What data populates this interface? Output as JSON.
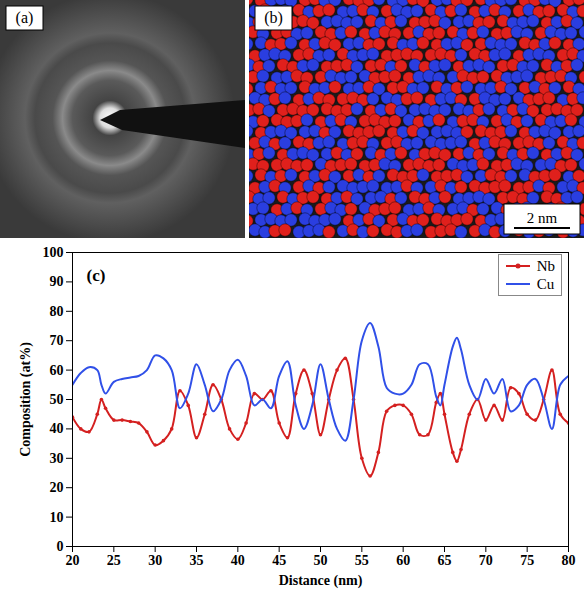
{
  "image_panels": [
    {
      "label": "(a)"
    },
    {
      "label": "(b)",
      "scale_bar": "2 nm"
    }
  ],
  "chart_data": {
    "type": "line",
    "annotations": [
      "(c)"
    ],
    "x_label": "Distance (nm)",
    "y_label": "Composition (at%)",
    "x": [
      20,
      21,
      22,
      23,
      23.5,
      24,
      25,
      26,
      27,
      28,
      29,
      30,
      31,
      32,
      33,
      34,
      35,
      36,
      37,
      38,
      39,
      40,
      41,
      42,
      43,
      44,
      45,
      46,
      47,
      48,
      49,
      50,
      51,
      52,
      53,
      54,
      55,
      56,
      57,
      58,
      59,
      60,
      61,
      62,
      63,
      64,
      64.5,
      65,
      66,
      66.5,
      67,
      68,
      69,
      70,
      71,
      72,
      73,
      74,
      75,
      76,
      77,
      78,
      79,
      80
    ],
    "series": [
      {
        "name": "Nb",
        "color": "#d42020",
        "marker": "circle",
        "values": [
          44,
          40,
          39,
          45,
          50,
          47,
          43,
          43,
          42.5,
          42,
          39,
          34.5,
          36,
          40,
          53,
          48,
          37,
          45,
          55,
          50,
          40,
          36.5,
          42,
          52,
          50,
          53,
          42,
          37,
          52,
          60,
          52,
          38,
          50,
          60,
          64,
          50,
          30,
          24,
          32,
          46,
          48,
          48,
          45,
          38,
          38,
          49,
          52,
          45,
          32,
          29,
          33,
          45,
          50,
          43,
          48,
          43,
          54,
          52,
          45,
          43,
          50,
          60,
          45,
          42
        ]
      },
      {
        "name": "Cu",
        "color": "#3050e8",
        "values": [
          55,
          59,
          61,
          60,
          55,
          52,
          56,
          57,
          57.5,
          58,
          60,
          65,
          64,
          60,
          47,
          52,
          62,
          55,
          46,
          50,
          60,
          63.5,
          58,
          48,
          50,
          47,
          58,
          63,
          48,
          40,
          48,
          62,
          50,
          40,
          36,
          50,
          70,
          76,
          68,
          54,
          52,
          52,
          55,
          62,
          62,
          51,
          48,
          55,
          68,
          71,
          67,
          55,
          50,
          57,
          52,
          57,
          46,
          48,
          55,
          57,
          50,
          40,
          55,
          58
        ]
      }
    ],
    "xlim": [
      20,
      80
    ],
    "xticks": [
      20,
      25,
      30,
      35,
      40,
      45,
      50,
      55,
      60,
      65,
      70,
      75,
      80
    ],
    "ylim": [
      0,
      100
    ],
    "yticks": [
      0,
      10,
      20,
      30,
      40,
      50,
      60,
      70,
      80,
      90,
      100
    ],
    "grid": false,
    "legend": "top-right"
  }
}
